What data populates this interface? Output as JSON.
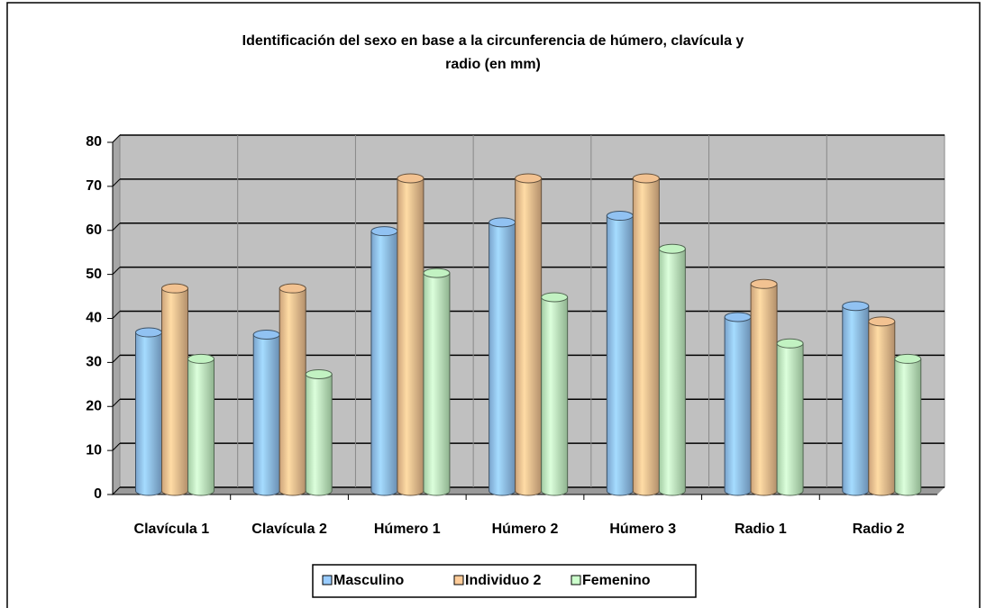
{
  "chart_data": {
    "type": "bar3d",
    "title": "Identificación del sexo en base a la circunferencia de húmero, clavícula y radio (en mm)",
    "categories": [
      "Clavícula 1",
      "Clavícula 2",
      "Húmero 1",
      "Húmero 2",
      "Húmero 3",
      "Radio 1",
      "Radio 2"
    ],
    "series": [
      {
        "name": "Masculino",
        "color": "#99ccff",
        "values": [
          36,
          35.5,
          59,
          61,
          62.5,
          39.5,
          42
        ]
      },
      {
        "name": "Individuo 2",
        "color": "#ffcc99",
        "values": [
          46,
          46,
          71,
          71,
          71,
          47,
          38.5
        ]
      },
      {
        "name": "Femenino",
        "color": "#ccffcc",
        "values": [
          30,
          26.5,
          49.5,
          44,
          55,
          33.5,
          30
        ]
      }
    ],
    "ylim": [
      0,
      80
    ],
    "yticks": [
      0,
      10,
      20,
      30,
      40,
      50,
      60,
      70,
      80
    ],
    "grid": true,
    "legend": "bottom"
  }
}
